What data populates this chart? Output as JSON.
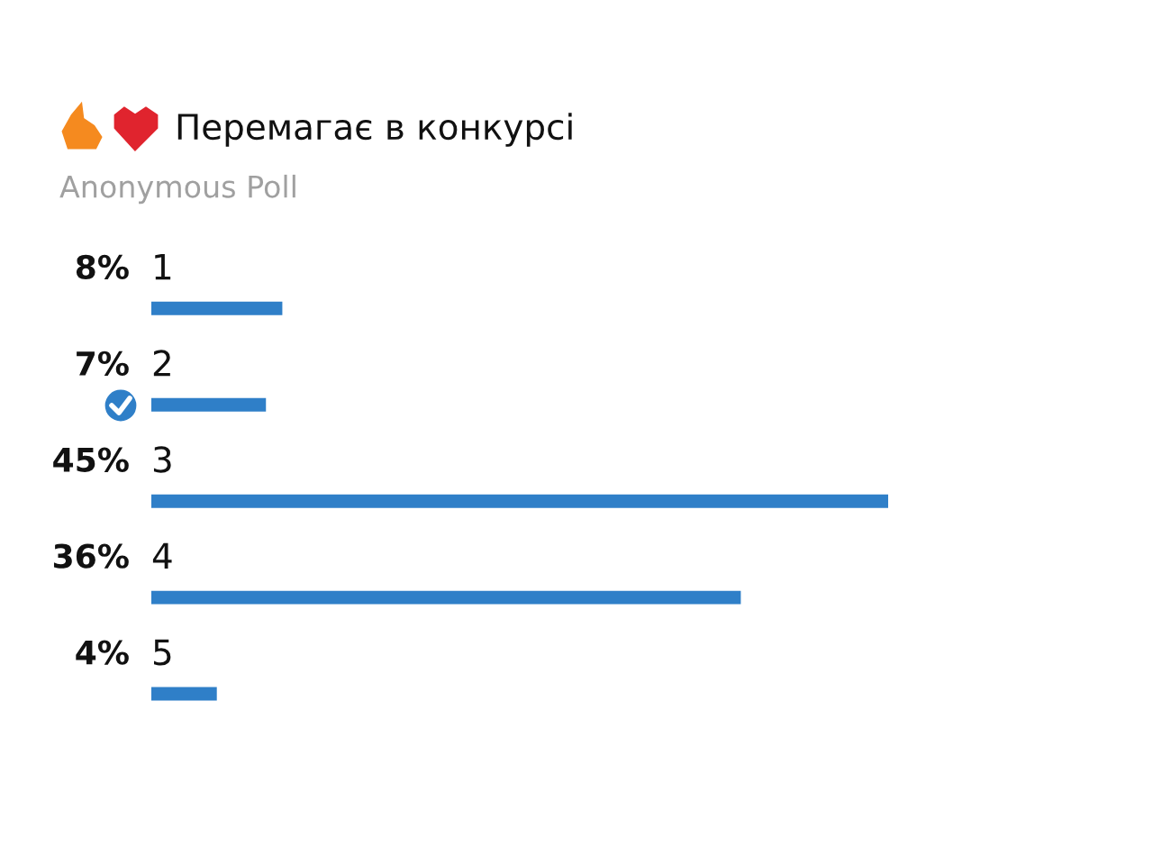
{
  "chart_data": {
    "type": "bar",
    "orientation": "horizontal",
    "title": "Перемагає в конкурсі",
    "subtitle": "Anonymous Poll",
    "categories": [
      "1",
      "2",
      "3",
      "4",
      "5"
    ],
    "values": [
      8,
      7,
      45,
      36,
      4
    ],
    "value_labels": [
      "8%",
      "7%",
      "45%",
      "36%",
      "4%"
    ],
    "color": "#2f7fc8"
  }
}
